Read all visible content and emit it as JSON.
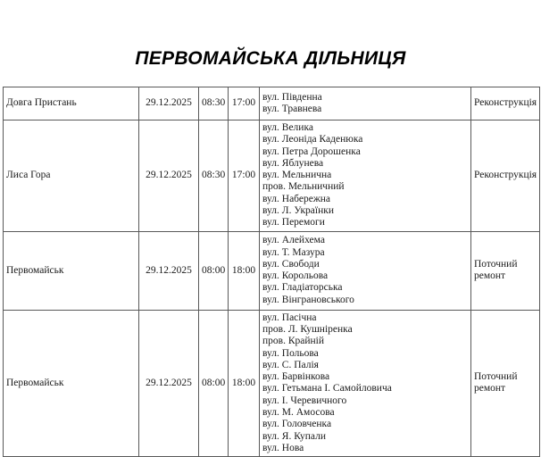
{
  "page": {
    "title": "ПЕРВОМАЙСЬКА ДІЛЬНИЦЯ",
    "background_color": "#ffffff",
    "border_color": "#595959",
    "text_color": "#1a1a1a"
  },
  "table": {
    "columns": [
      "location",
      "date",
      "start_time",
      "end_time",
      "streets",
      "work_type"
    ],
    "rows": [
      {
        "location": "Довга Пристань",
        "date": "29.12.2025",
        "start_time": "08:30",
        "end_time": "17:00",
        "streets": [
          "вул. Південна",
          "вул. Травнева"
        ],
        "work_type": "Реконструкція"
      },
      {
        "location": "Лиса Гора",
        "date": "29.12.2025",
        "start_time": "08:30",
        "end_time": "17:00",
        "streets": [
          "вул. Велика",
          "вул. Леоніда Каденюка",
          "вул. Петра Дорошенка",
          "вул. Яблунева",
          "вул. Мельнична",
          "пров. Мельничний",
          "вул. Набережна",
          "вул. Л. Українки",
          "вул. Перемоги"
        ],
        "work_type": "Реконструкція"
      },
      {
        "location": "Первомайськ",
        "date": "29.12.2025",
        "start_time": "08:00",
        "end_time": "18:00",
        "streets": [
          "вул. Алейхема",
          "вул. Т. Мазура",
          "вул. Свободи",
          "вул. Корольова",
          "вул. Гладіаторська",
          "вул. Вінграновського"
        ],
        "work_type": "Поточний ремонт"
      },
      {
        "location": "Первомайськ",
        "date": "29.12.2025",
        "start_time": "08:00",
        "end_time": "18:00",
        "streets": [
          "вул. Пасічна",
          "пров. Л. Кушніренка",
          "пров. Крайній",
          "вул. Польова",
          "вул. С. Палія",
          "вул. Барвінкова",
          "вул. Гетьмана І. Самойловича",
          "вул. І. Черевичного",
          "вул. М. Амосова",
          "вул. Головченка",
          "вул. Я. Купали",
          "вул. Нова"
        ],
        "work_type": "Поточний ремонт"
      }
    ]
  }
}
